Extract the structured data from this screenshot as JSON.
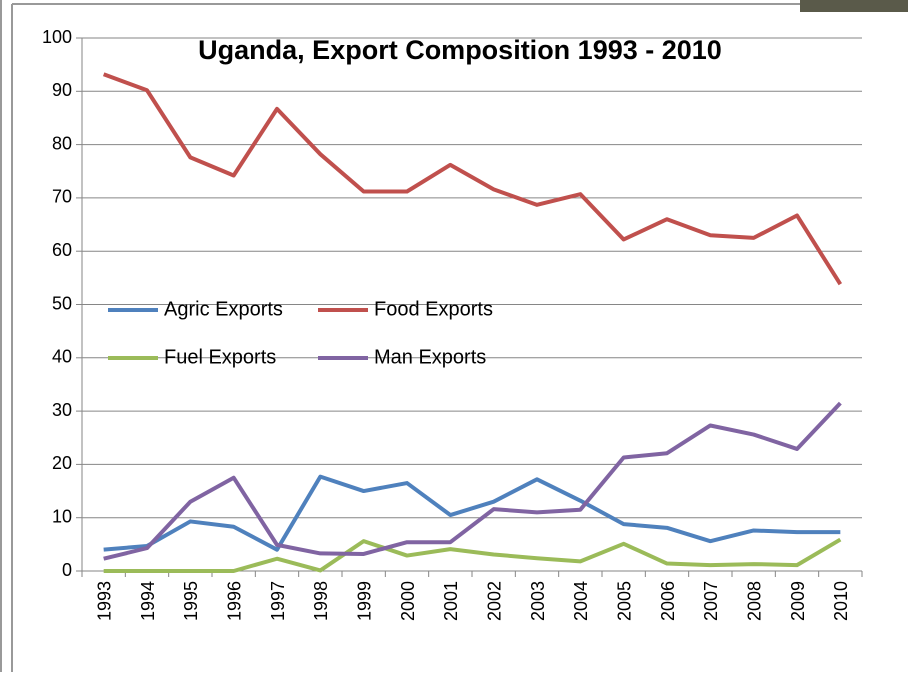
{
  "chart_data": {
    "type": "line",
    "title": "Uganda, Export Composition 1993 - 2010",
    "categories": [
      "1993",
      "1994",
      "1995",
      "1996",
      "1997",
      "1998",
      "1999",
      "2000",
      "2001",
      "2002",
      "2003",
      "2004",
      "2005",
      "2006",
      "2007",
      "2008",
      "2009",
      "2010"
    ],
    "series": [
      {
        "name": "Agric Exports",
        "color": "#4f81bd",
        "values": [
          4.0,
          4.7,
          9.3,
          8.3,
          4.0,
          17.7,
          15.0,
          16.5,
          10.5,
          13.0,
          17.2,
          13.2,
          8.8,
          8.1,
          5.6,
          7.6,
          7.3,
          7.3
        ]
      },
      {
        "name": "Food Exports",
        "color": "#c0504d",
        "values": [
          93.2,
          90.2,
          77.6,
          74.2,
          86.7,
          78.2,
          71.2,
          71.2,
          76.2,
          71.6,
          68.7,
          70.7,
          62.2,
          66.0,
          63.0,
          62.5,
          66.7,
          53.8
        ]
      },
      {
        "name": "Fuel Exports",
        "color": "#9bbb59",
        "values": [
          0,
          0,
          0,
          0,
          2.3,
          0.1,
          5.6,
          2.9,
          4.1,
          3.1,
          2.4,
          1.8,
          5.1,
          1.4,
          1.1,
          1.3,
          1.1,
          5.9
        ]
      },
      {
        "name": "Man Exports",
        "color": "#8064a2",
        "values": [
          2.3,
          4.3,
          13.0,
          17.5,
          4.9,
          3.3,
          3.2,
          5.4,
          5.4,
          11.6,
          11.0,
          11.5,
          21.3,
          22.1,
          27.3,
          25.6,
          22.9,
          31.5
        ]
      }
    ],
    "ylim": [
      0,
      100
    ],
    "yticks": [
      0,
      10,
      20,
      30,
      40,
      50,
      60,
      70,
      80,
      90,
      100
    ],
    "grid": true,
    "legend": "center-left"
  }
}
